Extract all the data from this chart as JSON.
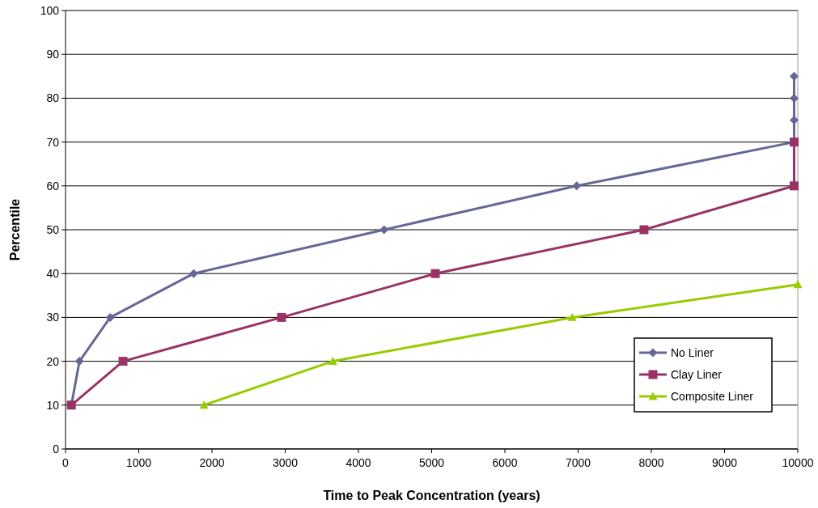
{
  "chart_data": {
    "type": "line",
    "xlabel": "Time to Peak Concentration (years)",
    "ylabel": "Percentile",
    "xlim": [
      0,
      10000
    ],
    "xticks": [
      0,
      1000,
      2000,
      3000,
      4000,
      5000,
      6000,
      7000,
      8000,
      9000,
      10000
    ],
    "ylim": [
      0,
      100
    ],
    "yticks": [
      0,
      10,
      20,
      30,
      40,
      50,
      60,
      70,
      80,
      90,
      100
    ],
    "grid": "y",
    "legend": "bottom right",
    "series": [
      {
        "name": "No Liner",
        "color": "#666699",
        "marker": "diamond",
        "x": [
          80,
          190,
          610,
          1750,
          4350,
          6980,
          9950,
          9950,
          9950,
          9950
        ],
        "values": [
          10,
          20,
          30,
          40,
          50,
          60,
          70,
          75,
          80,
          85
        ]
      },
      {
        "name": "Clay Liner",
        "color": "#993366",
        "marker": "square",
        "x": [
          80,
          785,
          2950,
          5050,
          7900,
          9950,
          9950
        ],
        "values": [
          10,
          20,
          30,
          40,
          50,
          60,
          70
        ]
      },
      {
        "name": "Composite Liner",
        "color": "#99cc00",
        "marker": "triangle",
        "x": [
          1890,
          3650,
          6920,
          10000
        ],
        "values": [
          10,
          20,
          30,
          37.5
        ]
      }
    ]
  }
}
